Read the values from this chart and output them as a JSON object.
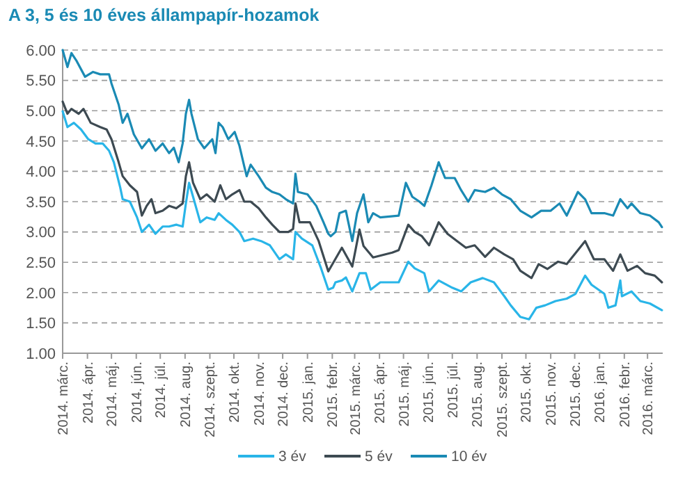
{
  "chart_data": {
    "type": "line",
    "title": "A 3, 5 és 10 éves állampapír-hozamok",
    "xlim": [
      "2014-03-01",
      "2016-03-20"
    ],
    "xticks": [
      {
        "value": "2014-03-01",
        "label": "2014. márc."
      },
      {
        "value": "2014-04-01",
        "label": "2014. ápr."
      },
      {
        "value": "2014-05-01",
        "label": "2014. máj."
      },
      {
        "value": "2014-06-01",
        "label": "2014. jún."
      },
      {
        "value": "2014-07-01",
        "label": "2014. júl."
      },
      {
        "value": "2014-08-01",
        "label": "2014. aug."
      },
      {
        "value": "2014-09-01",
        "label": "2014. szept."
      },
      {
        "value": "2014-10-01",
        "label": "2014. okt."
      },
      {
        "value": "2014-11-01",
        "label": "2014. nov."
      },
      {
        "value": "2014-12-01",
        "label": "2014. dec."
      },
      {
        "value": "2015-01-01",
        "label": "2015. jan."
      },
      {
        "value": "2015-02-01",
        "label": "2015. febr."
      },
      {
        "value": "2015-03-01",
        "label": "2015. márc."
      },
      {
        "value": "2015-04-01",
        "label": "2015. ápr."
      },
      {
        "value": "2015-05-01",
        "label": "2015. máj."
      },
      {
        "value": "2015-06-01",
        "label": "2015. jún."
      },
      {
        "value": "2015-07-01",
        "label": "2015. júl."
      },
      {
        "value": "2015-08-01",
        "label": "2015. aug."
      },
      {
        "value": "2015-09-01",
        "label": "2015. szept."
      },
      {
        "value": "2015-10-01",
        "label": "2015. okt."
      },
      {
        "value": "2015-11-01",
        "label": "2015. nov."
      },
      {
        "value": "2015-12-01",
        "label": "2015. dec."
      },
      {
        "value": "2016-01-01",
        "label": "2016. jan."
      },
      {
        "value": "2016-02-01",
        "label": "2016. febr."
      },
      {
        "value": "2016-03-01",
        "label": "2016. márc."
      }
    ],
    "ylim": [
      1,
      6
    ],
    "yticks": [
      {
        "value": 1,
        "label": "1.00"
      },
      {
        "value": 1.5,
        "label": "1.50"
      },
      {
        "value": 2,
        "label": "2.00"
      },
      {
        "value": 2.5,
        "label": "2.50"
      },
      {
        "value": 3,
        "label": "3.00"
      },
      {
        "value": 3.5,
        "label": "3.50"
      },
      {
        "value": 4,
        "label": "4.00"
      },
      {
        "value": 4.5,
        "label": "4.50"
      },
      {
        "value": 5,
        "label": "5.00"
      },
      {
        "value": 5.5,
        "label": "5.50"
      },
      {
        "value": 6,
        "label": "6.00"
      }
    ],
    "grid": "y",
    "legend": "bottom",
    "line_style": "solid",
    "series": [
      {
        "name": "3 év",
        "color": "#29b5e8",
        "x": [
          "2014-03-01",
          "2014-03-07",
          "2014-03-15",
          "2014-03-24",
          "2014-04-02",
          "2014-04-11",
          "2014-04-20",
          "2014-04-28",
          "2014-05-04",
          "2014-05-12",
          "2014-05-15",
          "2014-05-24",
          "2014-06-02",
          "2014-06-08",
          "2014-06-17",
          "2014-06-25",
          "2014-07-04",
          "2014-07-12",
          "2014-07-21",
          "2014-07-29",
          "2014-08-02",
          "2014-08-06",
          "2014-08-11",
          "2014-08-20",
          "2014-08-28",
          "2014-09-07",
          "2014-09-12",
          "2014-09-21",
          "2014-09-29",
          "2014-10-08",
          "2014-10-14",
          "2014-10-25",
          "2014-11-04",
          "2014-11-15",
          "2014-11-27",
          "2014-12-05",
          "2014-12-14",
          "2014-12-17",
          "2014-12-25",
          "2015-01-07",
          "2015-01-18",
          "2015-01-27",
          "2015-02-02",
          "2015-02-05",
          "2015-02-13",
          "2015-02-18",
          "2015-02-26",
          "2015-03-07",
          "2015-03-15",
          "2015-03-21",
          "2015-04-02",
          "2015-04-25",
          "2015-05-07",
          "2015-05-15",
          "2015-05-27",
          "2015-06-02",
          "2015-06-14",
          "2015-07-01",
          "2015-07-12",
          "2015-07-24",
          "2015-08-08",
          "2015-08-22",
          "2015-09-04",
          "2015-09-12",
          "2015-09-24",
          "2015-10-05",
          "2015-10-14",
          "2015-10-25",
          "2015-11-07",
          "2015-11-21",
          "2015-12-02",
          "2015-12-14",
          "2015-12-22",
          "2016-01-07",
          "2016-01-12",
          "2016-01-21",
          "2016-01-27",
          "2016-01-29",
          "2016-02-10",
          "2016-02-21",
          "2016-03-04",
          "2016-03-19"
        ],
        "values": [
          4.99,
          4.73,
          4.8,
          4.69,
          4.53,
          4.46,
          4.46,
          4.34,
          4.15,
          3.73,
          3.54,
          3.5,
          3.24,
          3.0,
          3.12,
          2.97,
          3.09,
          3.09,
          3.12,
          3.09,
          3.47,
          3.81,
          3.58,
          3.16,
          3.24,
          3.2,
          3.31,
          3.2,
          3.12,
          3.0,
          2.85,
          2.89,
          2.85,
          2.78,
          2.55,
          2.63,
          2.55,
          3.0,
          2.89,
          2.78,
          2.4,
          2.05,
          2.08,
          2.17,
          2.2,
          2.25,
          2.02,
          2.32,
          2.32,
          2.05,
          2.17,
          2.17,
          2.51,
          2.4,
          2.32,
          2.02,
          2.2,
          2.08,
          2.02,
          2.17,
          2.24,
          2.17,
          1.94,
          1.79,
          1.6,
          1.56,
          1.75,
          1.79,
          1.86,
          1.9,
          1.98,
          2.28,
          2.13,
          1.98,
          1.75,
          1.79,
          2.2,
          1.94,
          2.02,
          1.86,
          1.82,
          1.71
        ]
      },
      {
        "name": "5 év",
        "color": "#3d4a52",
        "x": [
          "2014-03-01",
          "2014-03-07",
          "2014-03-12",
          "2014-03-21",
          "2014-03-27",
          "2014-04-05",
          "2014-04-17",
          "2014-04-25",
          "2014-05-01",
          "2014-05-10",
          "2014-05-15",
          "2014-05-24",
          "2014-06-02",
          "2014-06-08",
          "2014-06-14",
          "2014-06-20",
          "2014-06-25",
          "2014-07-04",
          "2014-07-12",
          "2014-07-21",
          "2014-07-29",
          "2014-08-02",
          "2014-08-06",
          "2014-08-11",
          "2014-08-20",
          "2014-08-28",
          "2014-09-07",
          "2014-09-14",
          "2014-09-21",
          "2014-09-29",
          "2014-10-08",
          "2014-10-14",
          "2014-10-22",
          "2014-11-01",
          "2014-11-10",
          "2014-11-18",
          "2014-11-27",
          "2014-12-08",
          "2014-12-14",
          "2014-12-17",
          "2014-12-22",
          "2015-01-04",
          "2015-01-15",
          "2015-01-27",
          "2015-02-13",
          "2015-02-26",
          "2015-03-07",
          "2015-03-12",
          "2015-03-24",
          "2015-04-17",
          "2015-04-25",
          "2015-05-07",
          "2015-05-15",
          "2015-05-24",
          "2015-06-02",
          "2015-06-14",
          "2015-06-25",
          "2015-07-07",
          "2015-07-18",
          "2015-07-29",
          "2015-08-11",
          "2015-08-22",
          "2015-09-04",
          "2015-09-15",
          "2015-09-24",
          "2015-10-08",
          "2015-10-17",
          "2015-10-28",
          "2015-11-10",
          "2015-11-21",
          "2015-12-05",
          "2015-12-14",
          "2015-12-25",
          "2016-01-07",
          "2016-01-18",
          "2016-01-27",
          "2016-02-05",
          "2016-02-17",
          "2016-02-27",
          "2016-03-10",
          "2016-03-19"
        ],
        "values": [
          5.15,
          4.95,
          5.03,
          4.95,
          5.03,
          4.8,
          4.73,
          4.69,
          4.53,
          4.15,
          3.92,
          3.77,
          3.66,
          3.27,
          3.43,
          3.54,
          3.31,
          3.35,
          3.43,
          3.39,
          3.47,
          3.92,
          4.15,
          3.81,
          3.54,
          3.62,
          3.5,
          3.77,
          3.54,
          3.62,
          3.69,
          3.5,
          3.5,
          3.39,
          3.24,
          3.12,
          3.0,
          3.0,
          3.05,
          3.47,
          3.16,
          3.16,
          2.85,
          2.35,
          2.74,
          2.43,
          3.04,
          2.77,
          2.58,
          2.66,
          2.7,
          3.12,
          3.0,
          2.93,
          2.78,
          3.16,
          2.97,
          2.85,
          2.74,
          2.78,
          2.59,
          2.74,
          2.63,
          2.55,
          2.36,
          2.24,
          2.47,
          2.39,
          2.51,
          2.47,
          2.7,
          2.85,
          2.55,
          2.55,
          2.36,
          2.63,
          2.36,
          2.44,
          2.32,
          2.28,
          2.17
        ]
      },
      {
        "name": "10 év",
        "color": "#1a8ab4",
        "x": [
          "2014-03-01",
          "2014-03-07",
          "2014-03-12",
          "2014-03-18",
          "2014-03-29",
          "2014-04-08",
          "2014-04-17",
          "2014-04-28",
          "2014-05-01",
          "2014-05-10",
          "2014-05-15",
          "2014-05-21",
          "2014-05-29",
          "2014-06-08",
          "2014-06-17",
          "2014-06-25",
          "2014-07-04",
          "2014-07-12",
          "2014-07-18",
          "2014-07-24",
          "2014-07-29",
          "2014-08-02",
          "2014-08-06",
          "2014-08-09",
          "2014-08-17",
          "2014-08-25",
          "2014-09-04",
          "2014-09-08",
          "2014-09-12",
          "2014-09-17",
          "2014-09-24",
          "2014-10-02",
          "2014-10-08",
          "2014-10-14",
          "2014-10-17",
          "2014-10-22",
          "2014-11-01",
          "2014-11-10",
          "2014-11-18",
          "2014-11-27",
          "2014-12-05",
          "2014-12-14",
          "2014-12-17",
          "2014-12-20",
          "2015-01-01",
          "2015-01-12",
          "2015-01-21",
          "2015-01-27",
          "2015-01-30",
          "2015-02-05",
          "2015-02-10",
          "2015-02-18",
          "2015-02-26",
          "2015-03-04",
          "2015-03-12",
          "2015-03-18",
          "2015-03-24",
          "2015-04-02",
          "2015-04-25",
          "2015-05-04",
          "2015-05-12",
          "2015-05-21",
          "2015-05-27",
          "2015-06-05",
          "2015-06-14",
          "2015-06-22",
          "2015-07-04",
          "2015-07-12",
          "2015-07-21",
          "2015-07-29",
          "2015-08-11",
          "2015-08-22",
          "2015-09-01",
          "2015-09-12",
          "2015-09-24",
          "2015-10-08",
          "2015-10-20",
          "2015-11-01",
          "2015-11-12",
          "2015-11-21",
          "2015-12-05",
          "2015-12-14",
          "2015-12-22",
          "2016-01-07",
          "2016-01-18",
          "2016-01-27",
          "2016-02-05",
          "2016-02-10",
          "2016-02-21",
          "2016-03-04",
          "2016-03-15",
          "2016-03-19"
        ],
        "values": [
          6.0,
          5.72,
          5.95,
          5.83,
          5.56,
          5.64,
          5.6,
          5.6,
          5.45,
          5.1,
          4.8,
          4.95,
          4.61,
          4.38,
          4.53,
          4.34,
          4.46,
          4.3,
          4.39,
          4.15,
          4.46,
          4.95,
          5.18,
          4.95,
          4.53,
          4.38,
          4.53,
          4.3,
          4.8,
          4.73,
          4.53,
          4.65,
          4.42,
          4.08,
          3.92,
          4.11,
          3.92,
          3.73,
          3.66,
          3.62,
          3.54,
          3.47,
          3.96,
          3.66,
          3.62,
          3.43,
          3.16,
          2.97,
          2.93,
          3.0,
          3.31,
          3.35,
          2.85,
          3.31,
          3.62,
          3.16,
          3.31,
          3.24,
          3.27,
          3.81,
          3.58,
          3.5,
          3.43,
          3.77,
          4.15,
          3.89,
          3.89,
          3.69,
          3.5,
          3.69,
          3.66,
          3.73,
          3.62,
          3.54,
          3.35,
          3.24,
          3.35,
          3.35,
          3.47,
          3.27,
          3.66,
          3.54,
          3.31,
          3.31,
          3.27,
          3.54,
          3.39,
          3.47,
          3.31,
          3.27,
          3.16,
          3.08
        ]
      }
    ]
  }
}
